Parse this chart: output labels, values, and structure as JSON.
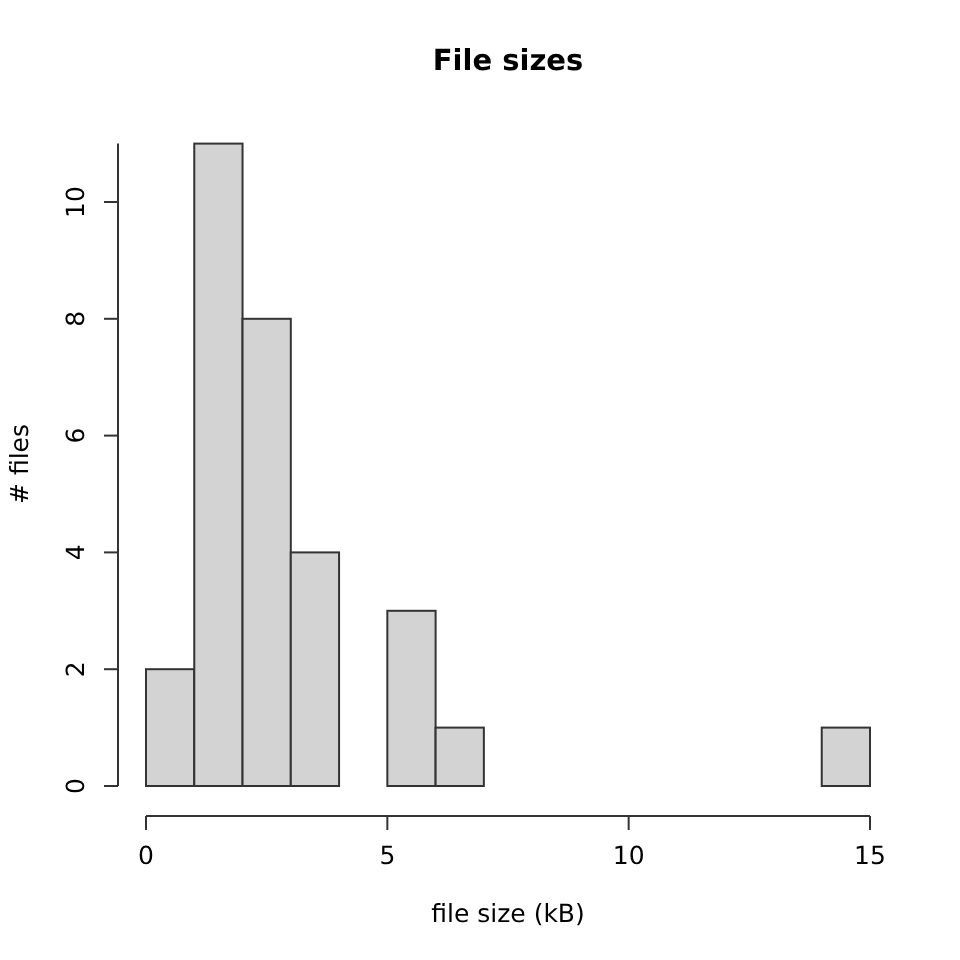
{
  "chart_data": {
    "type": "histogram",
    "title": "File sizes",
    "xlabel": "file size (kB)",
    "ylabel": "# files",
    "bins": [
      0,
      1,
      2,
      3,
      4,
      5,
      6,
      7,
      8,
      9,
      10,
      11,
      12,
      13,
      14,
      15
    ],
    "values": [
      2,
      11,
      8,
      4,
      0,
      3,
      1,
      0,
      0,
      0,
      0,
      0,
      0,
      0,
      1
    ],
    "color": "#d3d3d3",
    "xlim": [
      0,
      15
    ],
    "xticks": [
      0,
      5,
      10,
      15
    ],
    "ylim": [
      0,
      11
    ],
    "yticks": [
      0,
      2,
      4,
      6,
      8,
      10
    ]
  }
}
